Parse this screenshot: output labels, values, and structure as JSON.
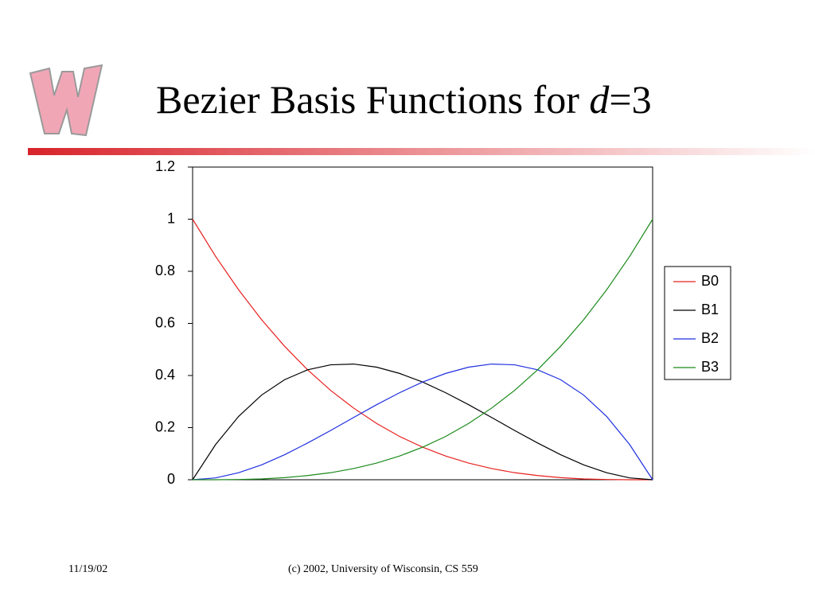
{
  "slide": {
    "title_text": "Bezier Basis Functions for",
    "title_var": "d",
    "title_rest": "=3",
    "footer_date": "11/19/02",
    "footer_credit": "(c) 2002, University of Wisconsin, CS 559"
  },
  "chart_data": {
    "type": "line",
    "x": [
      0,
      0.05,
      0.1,
      0.15,
      0.2,
      0.25,
      0.3,
      0.35,
      0.4,
      0.45,
      0.5,
      0.55,
      0.6,
      0.65,
      0.7,
      0.75,
      0.8,
      0.85,
      0.9,
      0.95,
      1
    ],
    "series": [
      {
        "name": "B0",
        "color": "#e8201f",
        "values": [
          1,
          0.857,
          0.729,
          0.614,
          0.512,
          0.422,
          0.343,
          0.275,
          0.216,
          0.166,
          0.125,
          0.091,
          0.064,
          0.043,
          0.027,
          0.016,
          0.008,
          0.003,
          0.001,
          0,
          0
        ]
      },
      {
        "name": "B1",
        "color": "#000000",
        "values": [
          0,
          0.135,
          0.243,
          0.325,
          0.384,
          0.422,
          0.441,
          0.444,
          0.432,
          0.408,
          0.375,
          0.334,
          0.288,
          0.239,
          0.189,
          0.141,
          0.096,
          0.057,
          0.027,
          0.007,
          0
        ]
      },
      {
        "name": "B2",
        "color": "#1f2fe0",
        "values": [
          0,
          0.007,
          0.027,
          0.057,
          0.096,
          0.141,
          0.189,
          0.239,
          0.288,
          0.334,
          0.375,
          0.408,
          0.432,
          0.444,
          0.441,
          0.422,
          0.384,
          0.325,
          0.243,
          0.135,
          0
        ]
      },
      {
        "name": "B3",
        "color": "#1a8a1a",
        "values": [
          0,
          0,
          0.001,
          0.003,
          0.008,
          0.016,
          0.027,
          0.043,
          0.064,
          0.091,
          0.125,
          0.166,
          0.216,
          0.275,
          0.343,
          0.422,
          0.512,
          0.614,
          0.729,
          0.857,
          1
        ]
      }
    ],
    "xlim": [
      0,
      1
    ],
    "ylim": [
      0,
      1.2
    ],
    "yticks": [
      0,
      0.2,
      0.4,
      0.6,
      0.8,
      1,
      1.2
    ],
    "grid": false,
    "legend": "right"
  }
}
